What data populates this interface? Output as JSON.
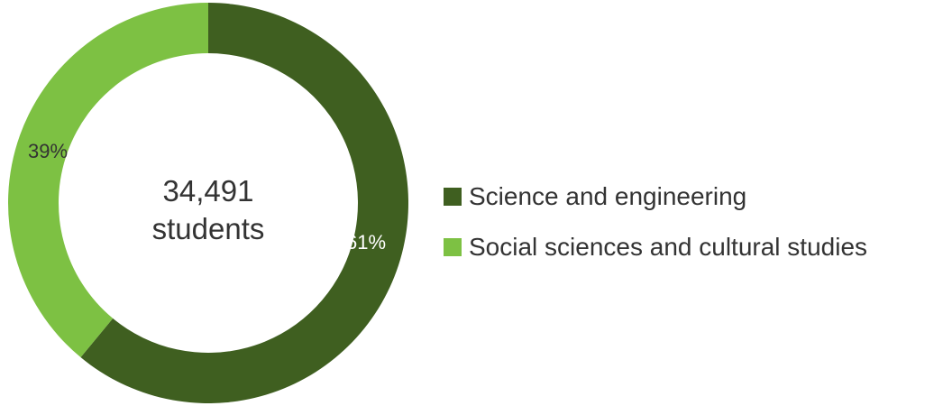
{
  "chart_data": {
    "type": "donut",
    "center_value": "34,491",
    "center_unit": "students",
    "slices": [
      {
        "name": "Science and engineering",
        "value": 61,
        "label": "61%",
        "color": "#3f5f20"
      },
      {
        "name": "Social sciences and cultural studies",
        "value": 39,
        "label": "39%",
        "color": "#7dc143"
      }
    ],
    "legend_position": "right"
  }
}
